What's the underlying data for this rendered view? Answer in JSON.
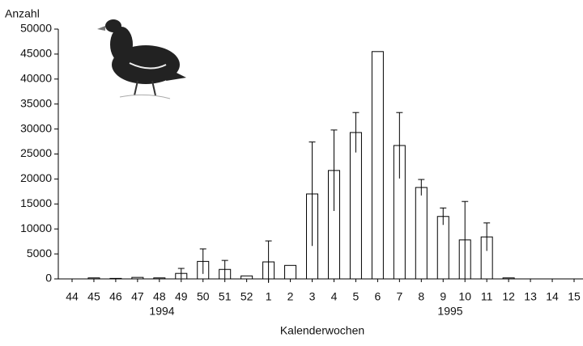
{
  "chart_data": {
    "type": "bar",
    "y_label": "Anzahl",
    "x_label": "Kalenderwochen",
    "categories": [
      "44",
      "45",
      "46",
      "47",
      "48",
      "49",
      "50",
      "51",
      "52",
      "1",
      "2",
      "3",
      "4",
      "5",
      "6",
      "7",
      "8",
      "9",
      "10",
      "11",
      "12",
      "13",
      "14",
      "15"
    ],
    "values": [
      0,
      200,
      100,
      300,
      200,
      1100,
      3500,
      1900,
      600,
      3400,
      2700,
      17000,
      21700,
      29300,
      45500,
      26700,
      18300,
      12500,
      7800,
      8400,
      200,
      0,
      0,
      0
    ],
    "errors": [
      null,
      null,
      null,
      null,
      null,
      1000,
      2500,
      1800,
      null,
      4200,
      null,
      10400,
      8100,
      4000,
      null,
      6600,
      1600,
      1700,
      7700,
      2800,
      null,
      null,
      null,
      null
    ],
    "color": "#ffffff",
    "ylim": [
      0,
      50000
    ],
    "yticks": [
      0,
      5000,
      10000,
      15000,
      20000,
      25000,
      30000,
      35000,
      40000,
      45000,
      50000
    ],
    "annotations": [
      "1994",
      "1995"
    ]
  }
}
